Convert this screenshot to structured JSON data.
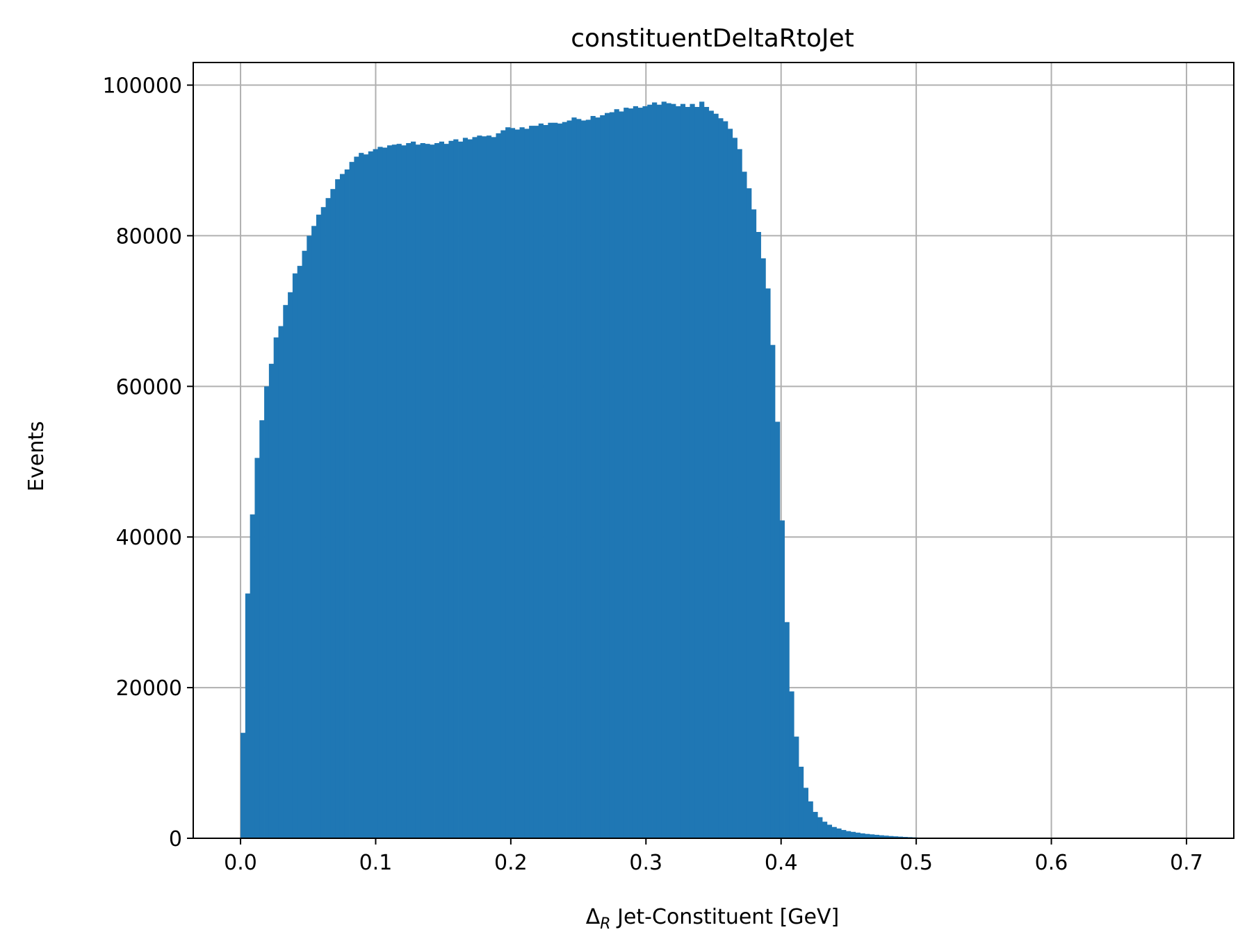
{
  "chart_data": {
    "type": "bar",
    "title": "constituentDeltaRtoJet",
    "xlabel_symbol": "Δ",
    "xlabel_subscript": "R",
    "xlabel_rest": " Jet-Constituent [GeV]",
    "ylabel": "Events",
    "xlim": [
      -0.035,
      0.735
    ],
    "ylim": [
      0,
      103000
    ],
    "grid": true,
    "bar_color": "#1f77b4",
    "bin_width": 0.0035,
    "x_ticks": [
      0.0,
      0.1,
      0.2,
      0.3,
      0.4,
      0.5,
      0.6,
      0.7
    ],
    "x_tick_labels": [
      "0.0",
      "0.1",
      "0.2",
      "0.3",
      "0.4",
      "0.5",
      "0.6",
      "0.7"
    ],
    "y_ticks": [
      0,
      20000,
      40000,
      60000,
      80000,
      100000
    ],
    "y_tick_labels": [
      "0",
      "20000",
      "40000",
      "60000",
      "80000",
      "100000"
    ],
    "bins": [
      [
        0.0,
        14000
      ],
      [
        0.0035,
        32500
      ],
      [
        0.007,
        43000
      ],
      [
        0.0105,
        50500
      ],
      [
        0.014,
        55500
      ],
      [
        0.0175,
        60000
      ],
      [
        0.021,
        63000
      ],
      [
        0.0245,
        66500
      ],
      [
        0.028,
        68000
      ],
      [
        0.0315,
        70800
      ],
      [
        0.035,
        72500
      ],
      [
        0.0385,
        75000
      ],
      [
        0.042,
        76000
      ],
      [
        0.0455,
        78000
      ],
      [
        0.049,
        80000
      ],
      [
        0.0525,
        81300
      ],
      [
        0.056,
        82800
      ],
      [
        0.0595,
        83800
      ],
      [
        0.063,
        85000
      ],
      [
        0.0665,
        86200
      ],
      [
        0.07,
        87500
      ],
      [
        0.0735,
        88200
      ],
      [
        0.077,
        88800
      ],
      [
        0.0805,
        89800
      ],
      [
        0.084,
        90500
      ],
      [
        0.0875,
        91000
      ],
      [
        0.091,
        90800
      ],
      [
        0.0945,
        91200
      ],
      [
        0.098,
        91500
      ],
      [
        0.1015,
        91800
      ],
      [
        0.105,
        91700
      ],
      [
        0.1085,
        92000
      ],
      [
        0.112,
        92100
      ],
      [
        0.1155,
        92200
      ],
      [
        0.119,
        92000
      ],
      [
        0.1225,
        92300
      ],
      [
        0.126,
        92500
      ],
      [
        0.1295,
        92100
      ],
      [
        0.133,
        92300
      ],
      [
        0.1365,
        92200
      ],
      [
        0.14,
        92100
      ],
      [
        0.1435,
        92300
      ],
      [
        0.147,
        92500
      ],
      [
        0.1505,
        92200
      ],
      [
        0.154,
        92600
      ],
      [
        0.1575,
        92800
      ],
      [
        0.161,
        92500
      ],
      [
        0.1645,
        93000
      ],
      [
        0.168,
        92800
      ],
      [
        0.1715,
        93100
      ],
      [
        0.175,
        93300
      ],
      [
        0.1785,
        93200
      ],
      [
        0.182,
        93300
      ],
      [
        0.1855,
        93100
      ],
      [
        0.189,
        93600
      ],
      [
        0.1925,
        94000
      ],
      [
        0.196,
        94400
      ],
      [
        0.1995,
        94300
      ],
      [
        0.203,
        94100
      ],
      [
        0.2065,
        94400
      ],
      [
        0.21,
        94200
      ],
      [
        0.2135,
        94600
      ],
      [
        0.217,
        94600
      ],
      [
        0.2205,
        94900
      ],
      [
        0.224,
        94700
      ],
      [
        0.2275,
        95000
      ],
      [
        0.231,
        95000
      ],
      [
        0.2345,
        94900
      ],
      [
        0.238,
        95100
      ],
      [
        0.2415,
        95300
      ],
      [
        0.245,
        95700
      ],
      [
        0.2485,
        95500
      ],
      [
        0.252,
        95300
      ],
      [
        0.2555,
        95400
      ],
      [
        0.259,
        95900
      ],
      [
        0.2625,
        95700
      ],
      [
        0.266,
        96000
      ],
      [
        0.2695,
        96300
      ],
      [
        0.273,
        96400
      ],
      [
        0.2765,
        96800
      ],
      [
        0.28,
        96500
      ],
      [
        0.2835,
        97000
      ],
      [
        0.287,
        96900
      ],
      [
        0.2905,
        97200
      ],
      [
        0.294,
        97000
      ],
      [
        0.2975,
        97200
      ],
      [
        0.301,
        97400
      ],
      [
        0.3045,
        97700
      ],
      [
        0.308,
        97400
      ],
      [
        0.3115,
        97800
      ],
      [
        0.315,
        97600
      ],
      [
        0.3185,
        97500
      ],
      [
        0.322,
        97200
      ],
      [
        0.3255,
        97500
      ],
      [
        0.329,
        97100
      ],
      [
        0.3325,
        97500
      ],
      [
        0.336,
        97100
      ],
      [
        0.3395,
        97800
      ],
      [
        0.343,
        97100
      ],
      [
        0.3465,
        96600
      ],
      [
        0.35,
        96200
      ],
      [
        0.3535,
        95600
      ],
      [
        0.357,
        95200
      ],
      [
        0.3605,
        94200
      ],
      [
        0.364,
        93000
      ],
      [
        0.3675,
        91500
      ],
      [
        0.371,
        88500
      ],
      [
        0.3745,
        86300
      ],
      [
        0.378,
        83500
      ],
      [
        0.3815,
        80500
      ],
      [
        0.385,
        77000
      ],
      [
        0.3885,
        73000
      ],
      [
        0.392,
        65500
      ],
      [
        0.3955,
        55300
      ],
      [
        0.399,
        42200
      ],
      [
        0.4025,
        28700
      ],
      [
        0.406,
        19500
      ],
      [
        0.4095,
        13500
      ],
      [
        0.413,
        9500
      ],
      [
        0.4165,
        6700
      ],
      [
        0.42,
        4900
      ],
      [
        0.4235,
        3500
      ],
      [
        0.427,
        2800
      ],
      [
        0.4305,
        2200
      ],
      [
        0.434,
        1800
      ],
      [
        0.4375,
        1500
      ],
      [
        0.441,
        1300
      ],
      [
        0.4445,
        1100
      ],
      [
        0.448,
        950
      ],
      [
        0.4515,
        850
      ],
      [
        0.455,
        750
      ],
      [
        0.4585,
        650
      ],
      [
        0.462,
        580
      ],
      [
        0.4655,
        520
      ],
      [
        0.469,
        460
      ],
      [
        0.4725,
        400
      ],
      [
        0.476,
        350
      ],
      [
        0.4795,
        300
      ],
      [
        0.483,
        260
      ],
      [
        0.4865,
        220
      ],
      [
        0.49,
        180
      ],
      [
        0.4935,
        150
      ],
      [
        0.497,
        120
      ],
      [
        0.5005,
        90
      ],
      [
        0.504,
        60
      ],
      [
        0.5075,
        40
      ],
      [
        0.511,
        30
      ],
      [
        0.5145,
        20
      ],
      [
        0.518,
        10
      ]
    ]
  }
}
